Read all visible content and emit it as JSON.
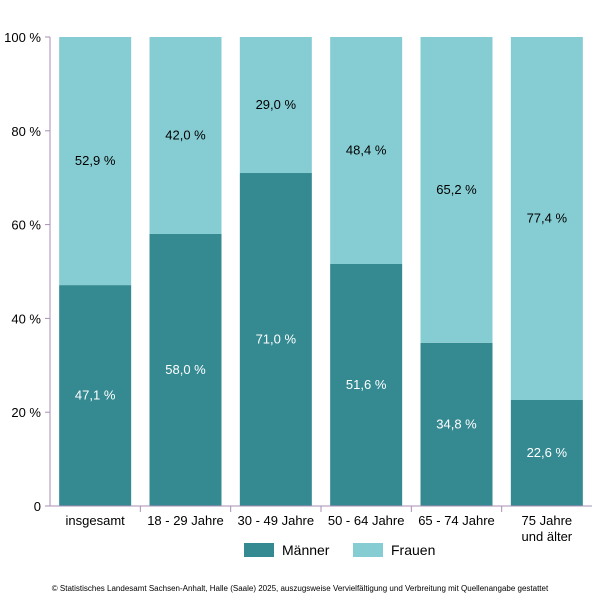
{
  "chart_data": {
    "type": "bar",
    "stacked": true,
    "categories": [
      "insgesamt",
      "18 - 29 Jahre",
      "30 - 49 Jahre",
      "50 - 64 Jahre",
      "65 - 74 Jahre",
      "75 Jahre\nund älter"
    ],
    "series": [
      {
        "name": "Männer",
        "values": [
          47.1,
          58.0,
          71.0,
          51.6,
          34.8,
          22.6
        ],
        "color": "#358a92",
        "labels": [
          "47,1 %",
          "58,0 %",
          "71,0 %",
          "51,6 %",
          "34,8 %",
          "22,6 %"
        ]
      },
      {
        "name": "Frauen",
        "values": [
          52.9,
          42.0,
          29.0,
          48.4,
          65.2,
          77.4
        ],
        "color": "#86cdd3",
        "labels": [
          "52,9 %",
          "42,0 %",
          "29,0 %",
          "48,4 %",
          "65,2 %",
          "77,4 %"
        ]
      }
    ],
    "yticks": [
      0,
      20,
      40,
      60,
      80,
      100
    ],
    "ytick_labels": [
      "0",
      "20 %",
      "40 %",
      "60 %",
      "80 %",
      "100 %"
    ],
    "ylim": [
      0,
      100
    ],
    "legend_position": "bottom",
    "grid": false
  },
  "footer": "© Statistisches Landesamt Sachsen-Anhalt, Halle (Saale) 2025, auszugsweise Vervielfältigung und Verbreitung mit Quellenangabe gestattet"
}
